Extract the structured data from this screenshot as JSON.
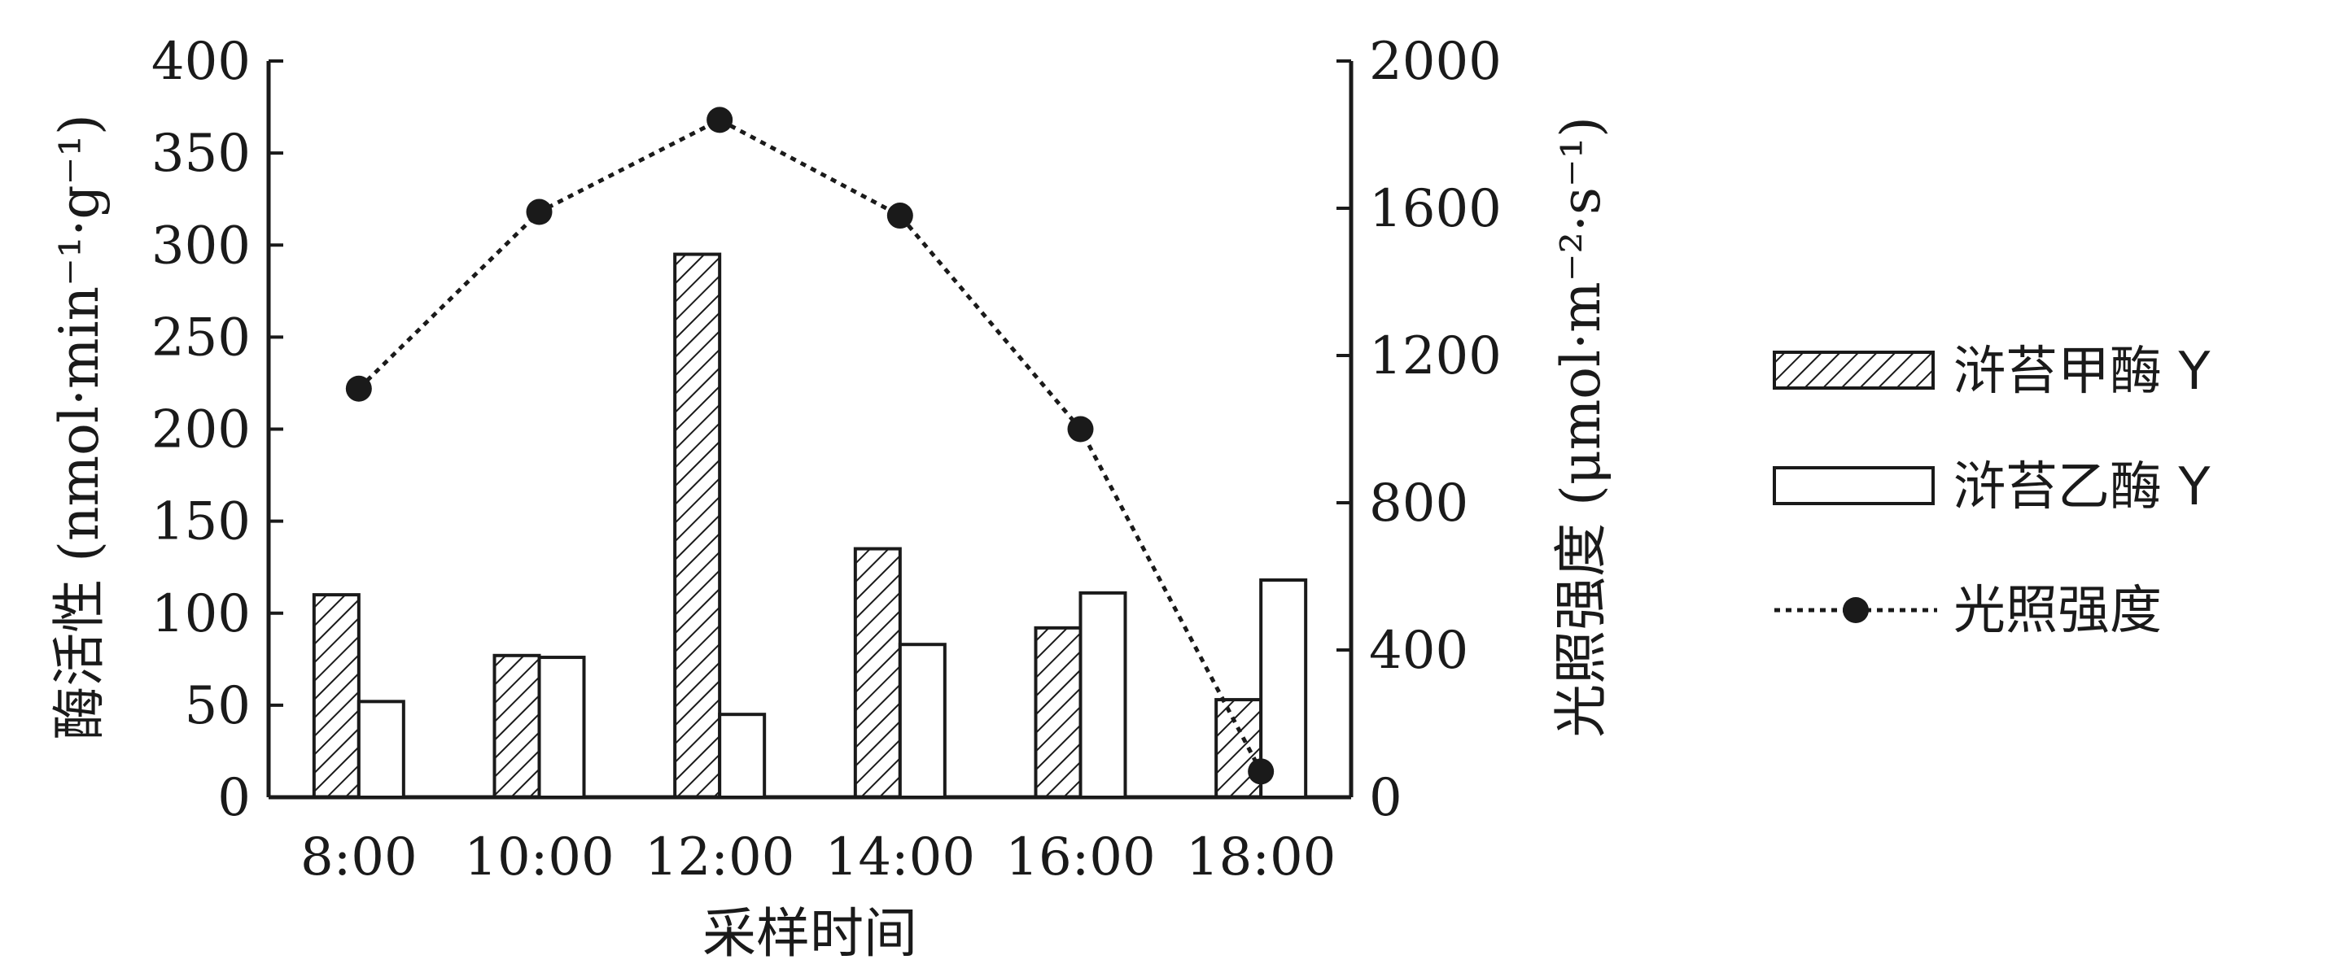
{
  "chart_data": {
    "type": "bar",
    "categories": [
      "8:00",
      "10:00",
      "12:00",
      "14:00",
      "16:00",
      "18:00"
    ],
    "series": [
      {
        "name": "浒苔甲酶 Y",
        "kind": "bar",
        "pattern": "hatched",
        "axis": "left",
        "values": [
          110,
          77,
          295,
          135,
          92,
          53
        ]
      },
      {
        "name": "浒苔乙酶 Y",
        "kind": "bar",
        "pattern": "open",
        "axis": "left",
        "values": [
          52,
          76,
          45,
          83,
          111,
          118
        ]
      },
      {
        "name": "光照强度",
        "kind": "line",
        "style": "dotted-with-filled-circles",
        "axis": "right",
        "values": [
          1110,
          1590,
          1840,
          1580,
          1000,
          70
        ]
      }
    ],
    "xlabel": "采样时间",
    "ylabel": "酶活性 (nmol·min⁻¹·g⁻¹)",
    "y2label": "光照强度 (μmol·m⁻²·s⁻¹)",
    "ylim": [
      0,
      400
    ],
    "y2lim": [
      0,
      2000
    ],
    "yticks": [
      0,
      50,
      100,
      150,
      200,
      250,
      300,
      350,
      400
    ],
    "y2ticks": [
      0,
      400,
      800,
      1200,
      1600,
      2000
    ],
    "grid": false,
    "legend_position": "right"
  }
}
